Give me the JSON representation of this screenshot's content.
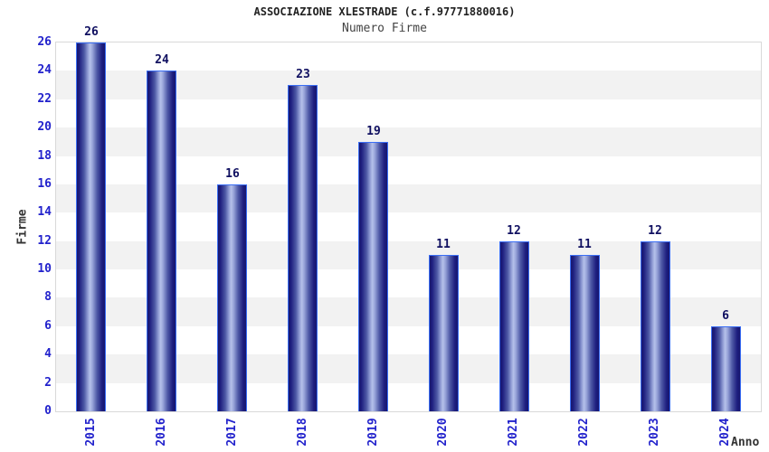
{
  "chart_data": {
    "type": "bar",
    "title": "ASSOCIAZIONE XLESTRADE (c.f.97771880016)",
    "subtitle": "Numero Firme",
    "xlabel": "Anno",
    "ylabel": "Firme",
    "categories": [
      "2015",
      "2016",
      "2017",
      "2018",
      "2019",
      "2020",
      "2021",
      "2022",
      "2023",
      "2024"
    ],
    "values": [
      26,
      24,
      16,
      23,
      19,
      11,
      12,
      11,
      12,
      6
    ],
    "ylim": [
      0,
      26
    ],
    "ytick_step": 2,
    "grid": "alternating-horizontal-bands",
    "legend": "none",
    "value_labels_shown": true,
    "colors": {
      "tick_label_blue": "#2222cc",
      "value_label_navy": "#0f0f60",
      "bar_edge_dark": "#17176e",
      "bar_mid": "#4d58a5",
      "bar_light_center": "#b6c1ea",
      "bar_outline": "#3a6ef5",
      "band_white": "#ffffff",
      "band_gray": "#f2f2f2",
      "plot_border": "#d9d9d9",
      "title_color": "#222222",
      "subtitle_color": "#444444",
      "axis_title_color": "#333333"
    }
  }
}
